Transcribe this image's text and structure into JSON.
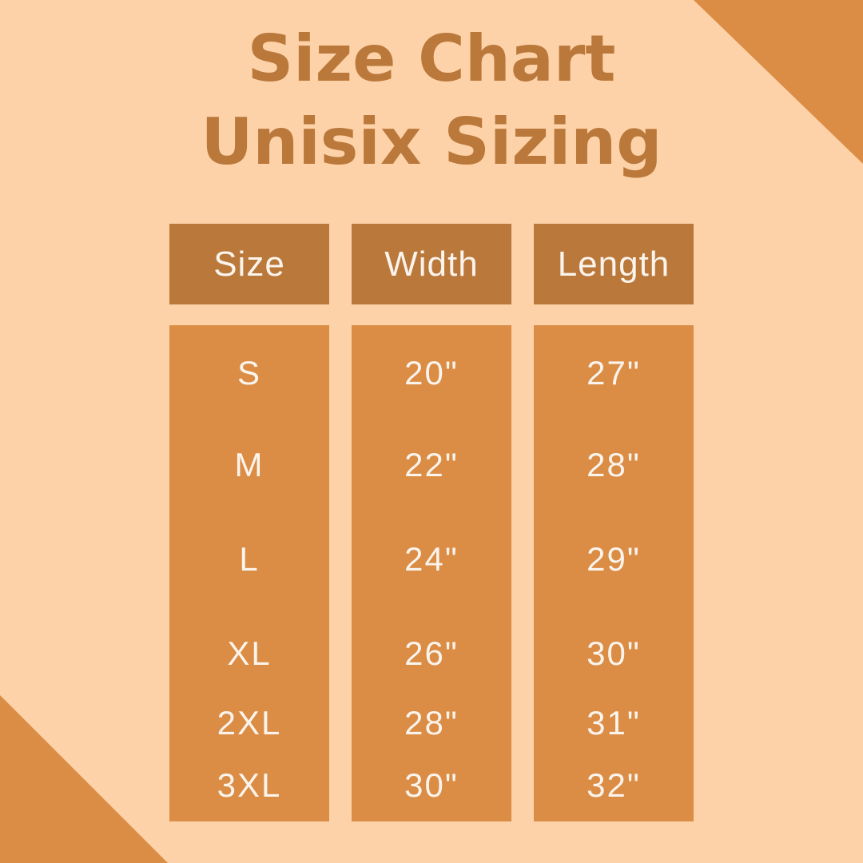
{
  "title": {
    "line1": "Size Chart",
    "line2": "Unisix Sizing"
  },
  "colors": {
    "background": "#FDD2A8",
    "brown": "#BB783B",
    "orange": "#DB8C45",
    "text_light": "#FAF4EC"
  },
  "table": {
    "headers": [
      "Size",
      "Width",
      "Length"
    ],
    "rows": [
      {
        "size": "S",
        "width": "20\"",
        "length": "27\""
      },
      {
        "size": "M",
        "width": "22\"",
        "length": "28\""
      },
      {
        "size": "L",
        "width": "24\"",
        "length": "29\""
      },
      {
        "size": "XL",
        "width": "26\"",
        "length": "30\""
      },
      {
        "size": "2XL",
        "width": "28\"",
        "length": "31\""
      },
      {
        "size": "3XL",
        "width": "30\"",
        "length": "32\""
      }
    ]
  },
  "chart_data": {
    "type": "table",
    "title": "Size Chart Unisix Sizing",
    "columns": [
      "Size",
      "Width",
      "Length"
    ],
    "rows": [
      [
        "S",
        "20\"",
        "27\""
      ],
      [
        "M",
        "22\"",
        "28\""
      ],
      [
        "L",
        "24\"",
        "29\""
      ],
      [
        "XL",
        "26\"",
        "30\""
      ],
      [
        "2XL",
        "28\"",
        "31\""
      ],
      [
        "3XL",
        "30\"",
        "32\""
      ]
    ],
    "units": "inches",
    "layout": "three separate pill columns with brown header boxes on peach background, orange corner triangles top-right and bottom-left"
  }
}
